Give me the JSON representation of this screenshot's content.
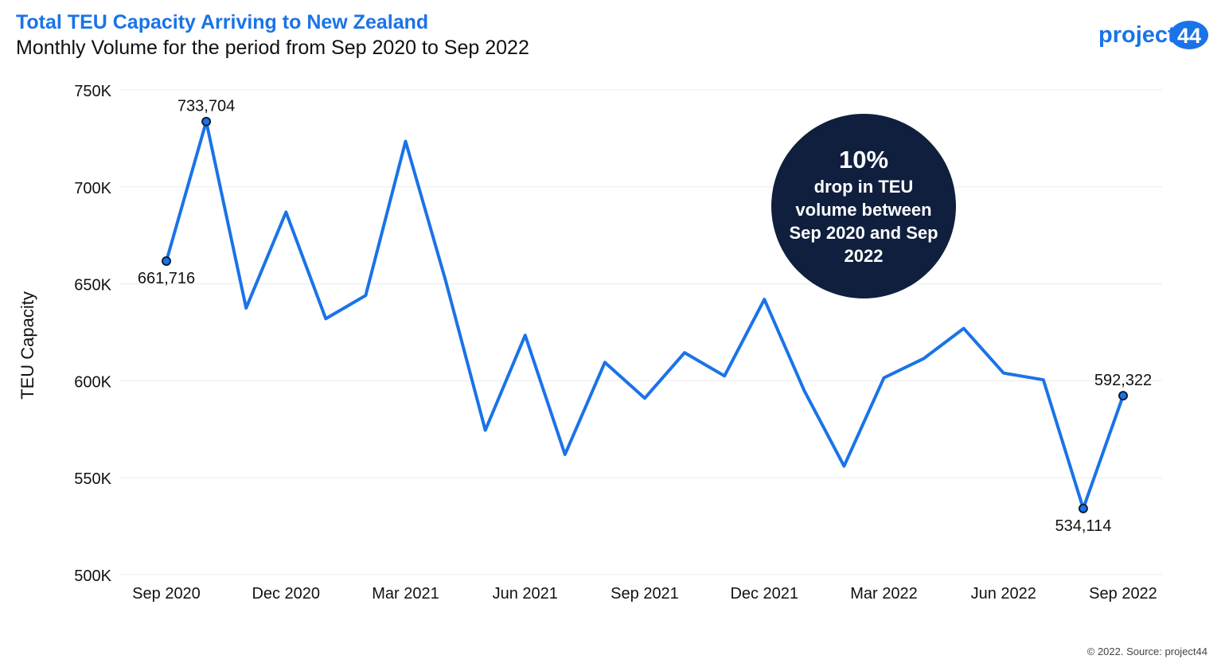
{
  "header": {
    "title": "Total TEU Capacity Arriving to New Zealand",
    "subtitle": "Monthly Volume for the period from Sep 2020 to Sep 2022"
  },
  "logo": {
    "text_before": "project",
    "text_badge": "44",
    "color": "#1a73e8"
  },
  "callout": {
    "percent": "10%",
    "text": "drop in TEU volume between Sep 2020 and Sep 2022",
    "background": "#0f1f3d"
  },
  "footer": {
    "source": "© 2022. Source: project44"
  },
  "chart_data": {
    "type": "line",
    "ylabel": "TEU Capacity",
    "xlabel": "",
    "ylim": [
      500000,
      750000
    ],
    "yticks": [
      500000,
      550000,
      600000,
      650000,
      700000,
      750000
    ],
    "ytick_labels": [
      "500K",
      "550K",
      "600K",
      "650K",
      "700K",
      "750K"
    ],
    "x_tick_labels": [
      "Sep 2020",
      "Dec 2020",
      "Mar 2021",
      "Jun 2021",
      "Sep 2021",
      "Dec 2021",
      "Mar 2022",
      "Jun 2022",
      "Sep 2022"
    ],
    "x_tick_index": [
      0,
      3,
      6,
      9,
      12,
      15,
      18,
      21,
      24
    ],
    "grid": true,
    "line_color": "#1a73e8",
    "categories": [
      "Sep 2020",
      "Oct 2020",
      "Nov 2020",
      "Dec 2020",
      "Jan 2021",
      "Feb 2021",
      "Mar 2021",
      "Apr 2021",
      "May 2021",
      "Jun 2021",
      "Jul 2021",
      "Aug 2021",
      "Sep 2021",
      "Oct 2021",
      "Nov 2021",
      "Dec 2021",
      "Jan 2022",
      "Feb 2022",
      "Mar 2022",
      "Apr 2022",
      "May 2022",
      "Jun 2022",
      "Jul 2022",
      "Aug 2022",
      "Sep 2022"
    ],
    "values": [
      661716,
      733704,
      637500,
      687000,
      632000,
      644000,
      723500,
      652000,
      574500,
      623500,
      562000,
      609500,
      591000,
      614500,
      602500,
      642000,
      595000,
      556000,
      601500,
      611500,
      627000,
      604000,
      600500,
      534114,
      592322
    ],
    "annotations": [
      {
        "index": 0,
        "label": "661,716",
        "position": "below"
      },
      {
        "index": 1,
        "label": "733,704",
        "position": "above"
      },
      {
        "index": 23,
        "label": "534,114",
        "position": "below"
      },
      {
        "index": 24,
        "label": "592,322",
        "position": "above"
      }
    ]
  }
}
